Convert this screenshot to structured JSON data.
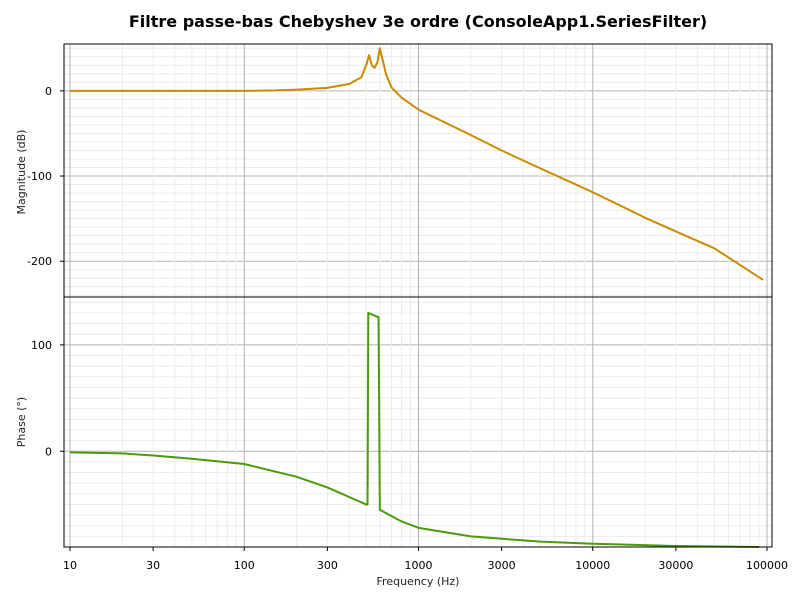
{
  "chart_data": {
    "type": "line",
    "title": "Filtre passe-bas Chebyshev 3e ordre (ConsoleApp1.SeriesFilter)",
    "xlabel": "Frequency (Hz)",
    "x_scale": "log",
    "xlim": [
      10,
      100000
    ],
    "x_tick_labels": [
      "10",
      "30",
      "100",
      "300",
      "1000",
      "3000",
      "10000",
      "30000",
      "100000"
    ],
    "grid": true,
    "panels": [
      {
        "ylabel": "Magnitude (dB)",
        "ylim": [
          -242,
          55
        ],
        "y_tick_labels": [
          "0",
          "-100",
          "-200"
        ],
        "series": [
          {
            "color": "#cc8a00",
            "points": [
              [
                10,
                0
              ],
              [
                30,
                0
              ],
              [
                100,
                0
              ],
              [
                150,
                0.5
              ],
              [
                200,
                1.5
              ],
              [
                300,
                3.5
              ],
              [
                400,
                8
              ],
              [
                470,
                16
              ],
              [
                505,
                32
              ],
              [
                520,
                42
              ],
              [
                540,
                30
              ],
              [
                560,
                27
              ],
              [
                580,
                33
              ],
              [
                600,
                50
              ],
              [
                625,
                35
              ],
              [
                650,
                20
              ],
              [
                700,
                4
              ],
              [
                800,
                -8
              ],
              [
                1000,
                -22
              ],
              [
                2000,
                -52
              ],
              [
                3000,
                -70
              ],
              [
                5000,
                -91
              ],
              [
                10000,
                -119
              ],
              [
                20000,
                -149
              ],
              [
                30000,
                -165
              ],
              [
                50000,
                -185
              ],
              [
                95000,
                -222
              ]
            ]
          }
        ]
      },
      {
        "ylabel": "Phase (°)",
        "ylim": [
          -90,
          145
        ],
        "y_tick_labels": [
          "0",
          "100"
        ],
        "series": [
          {
            "color": "#4a9a0a",
            "points": [
              [
                10,
                -1
              ],
              [
                20,
                -2
              ],
              [
                30,
                -4
              ],
              [
                50,
                -7
              ],
              [
                100,
                -12
              ],
              [
                200,
                -24
              ],
              [
                300,
                -34
              ],
              [
                400,
                -43
              ],
              [
                500,
                -50
              ],
              [
                510,
                -50
              ],
              [
                515,
                130
              ],
              [
                550,
                128
              ],
              [
                590,
                126
              ],
              [
                600,
                -55
              ],
              [
                800,
                -66
              ],
              [
                1000,
                -72
              ],
              [
                2000,
                -80
              ],
              [
                5000,
                -85
              ],
              [
                10000,
                -87
              ],
              [
                30000,
                -89
              ],
              [
                90000,
                -90
              ]
            ]
          }
        ]
      }
    ]
  }
}
